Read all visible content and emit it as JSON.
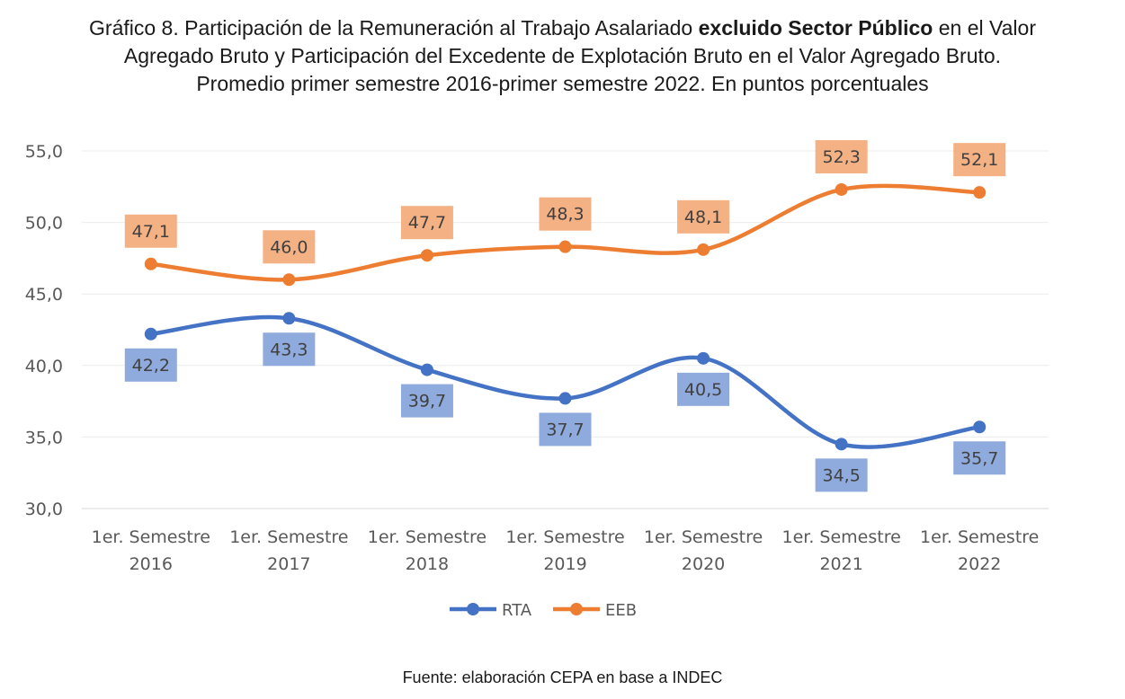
{
  "title": {
    "part1": "Gráfico 8. Participación de la Remuneración al Trabajo Asalariado ",
    "bold": "excluido Sector Público",
    "part2": " en el Valor",
    "line2": "Agregado Bruto y Participación del Excedente de Explotación Bruto en el Valor Agregado Bruto.",
    "line3": "Promedio primer semestre 2016-primer semestre 2022. En puntos porcentuales"
  },
  "source": "Fuente: elaboración CEPA en base a INDEC",
  "chart_data": {
    "type": "line",
    "categories": [
      [
        "1er. Semestre",
        "2016"
      ],
      [
        "1er. Semestre",
        "2017"
      ],
      [
        "1er. Semestre",
        "2018"
      ],
      [
        "1er. Semestre",
        "2019"
      ],
      [
        "1er. Semestre",
        "2020"
      ],
      [
        "1er. Semestre",
        "2021"
      ],
      [
        "1er. Semestre",
        "2022"
      ]
    ],
    "ylim": [
      30,
      55
    ],
    "yticks": [
      "30,0",
      "35,0",
      "40,0",
      "45,0",
      "50,0",
      "55,0"
    ],
    "grid": true,
    "legend": "bottom",
    "smooth": true,
    "series": [
      {
        "name": "RTA",
        "color": "#4472c4",
        "label_bg": "#8faadc",
        "label_position": "below",
        "values": [
          42.2,
          43.3,
          39.7,
          37.7,
          40.5,
          34.5,
          35.7
        ],
        "labels": [
          "42,2",
          "43,3",
          "39,7",
          "37,7",
          "40,5",
          "34,5",
          "35,7"
        ]
      },
      {
        "name": "EEB",
        "color": "#ed7d31",
        "label_bg": "#f4b183",
        "label_position": "above",
        "values": [
          47.1,
          46.0,
          47.7,
          48.3,
          48.1,
          52.3,
          52.1
        ],
        "labels": [
          "47,1",
          "46,0",
          "47,7",
          "48,3",
          "48,1",
          "52,3",
          "52,1"
        ]
      }
    ]
  }
}
